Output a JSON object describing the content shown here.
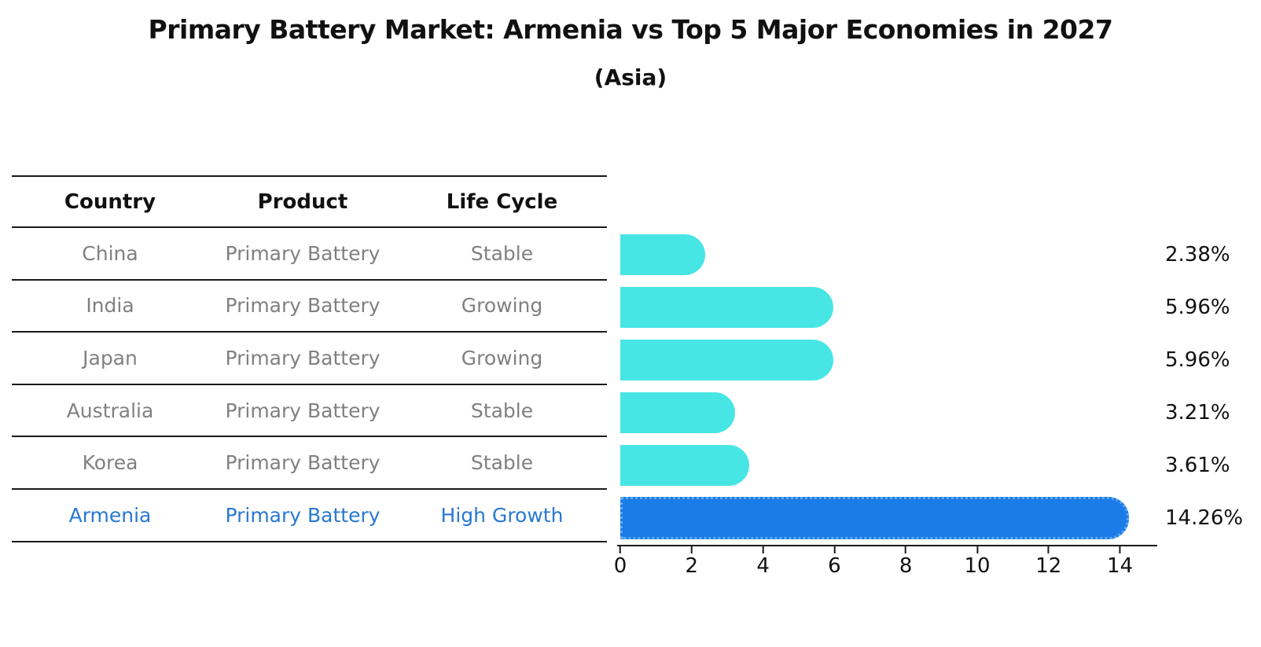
{
  "title": "Primary Battery Market: Armenia vs Top 5 Major Economies in 2027",
  "subtitle": "(Asia)",
  "table": {
    "headers": [
      "Country",
      "Product",
      "Life Cycle"
    ],
    "rows": [
      {
        "country": "China",
        "product": "Primary Battery",
        "life_cycle": "Stable",
        "highlight": false
      },
      {
        "country": "India",
        "product": "Primary Battery",
        "life_cycle": "Growing",
        "highlight": false
      },
      {
        "country": "Japan",
        "product": "Primary Battery",
        "life_cycle": "Growing",
        "highlight": false
      },
      {
        "country": "Australia",
        "product": "Primary Battery",
        "life_cycle": "Stable",
        "highlight": false
      },
      {
        "country": "Korea",
        "product": "Primary Battery",
        "life_cycle": "Stable",
        "highlight": false
      },
      {
        "country": "Armenia",
        "product": "Primary Battery",
        "life_cycle": "High Growth",
        "highlight": true
      }
    ]
  },
  "chart_data": {
    "type": "bar",
    "orientation": "horizontal",
    "title": "Primary Battery Market: Armenia vs Top 5 Major Economies in 2027",
    "subtitle": "(Asia)",
    "categories": [
      "China",
      "India",
      "Japan",
      "Australia",
      "Korea",
      "Armenia"
    ],
    "values": [
      2.38,
      5.96,
      5.96,
      3.21,
      3.61,
      14.26
    ],
    "value_labels": [
      "2.38%",
      "5.96%",
      "5.96%",
      "3.21%",
      "3.61%",
      "14.26%"
    ],
    "xlabel": "",
    "ylabel": "",
    "xlim": [
      0,
      15
    ],
    "xticks": [
      0,
      2,
      4,
      6,
      8,
      10,
      12,
      14
    ],
    "grid": false,
    "legend": false,
    "highlight_category": "Armenia",
    "colors": {
      "default_bar": "#48E5E5",
      "highlight_bar": "#1B7CE8",
      "highlight_border": "#5FA8F0",
      "highlight_text": "#2878D2",
      "row_text": "#808080",
      "header_text": "#111111"
    }
  }
}
